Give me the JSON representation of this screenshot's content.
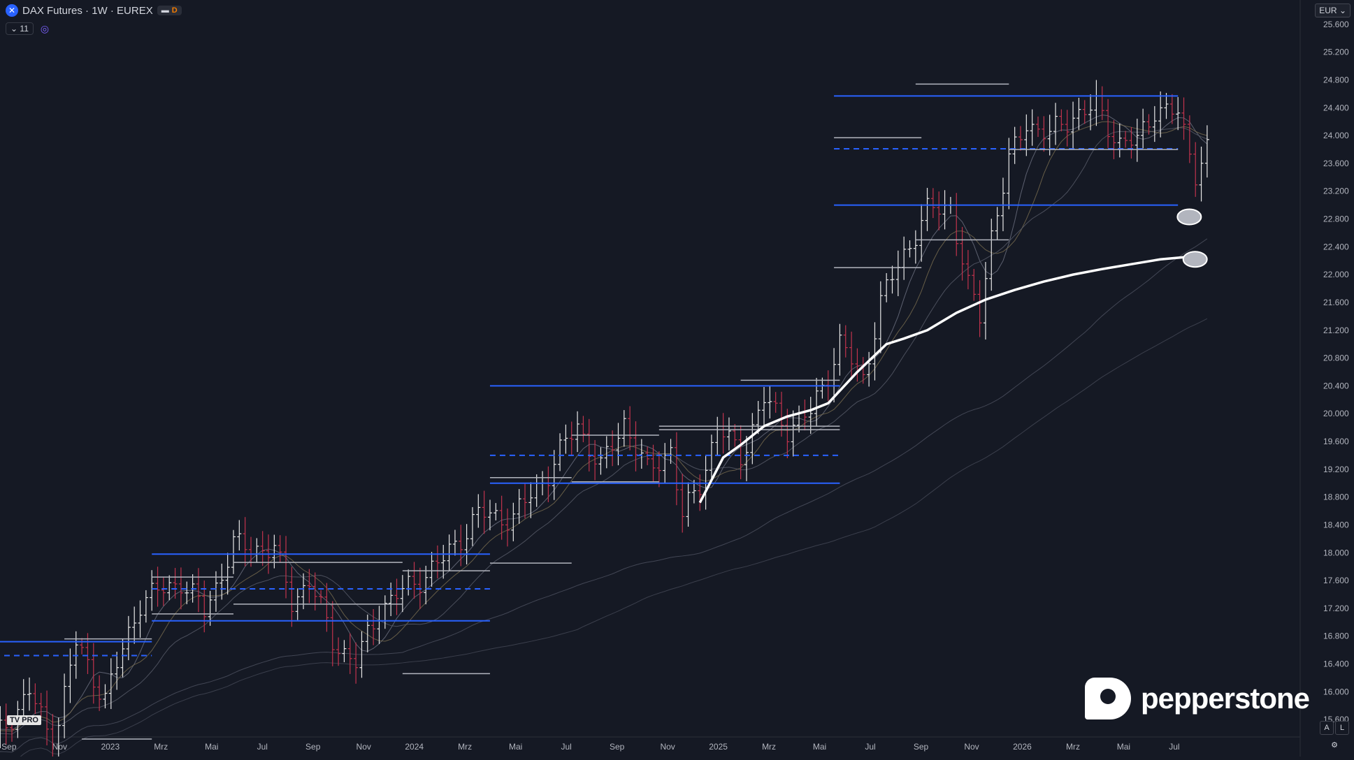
{
  "header": {
    "symbol_icon": "x-circle-icon",
    "title": "DAX Futures · 1W · EUREX",
    "badge_letter": "D",
    "indicator_count": "11",
    "currency": "EUR"
  },
  "controls": {
    "auto_label": "A",
    "log_label": "L",
    "settings_icon": "gear-icon"
  },
  "branding": {
    "logo_text": "pepperstone",
    "tv_badge": "TV PRO"
  },
  "colors": {
    "background": "#151924",
    "up_bar": "#e8e8e8",
    "down_bar": "#c2334d",
    "level_blue": "#2962ff",
    "level_white": "#b2b5be",
    "ma_highlight": "#ffffff"
  },
  "chart_data": {
    "type": "ohlc",
    "timeframe": "1W",
    "y_axis_ticks": [
      "15.600",
      "16.000",
      "16.400",
      "16.800",
      "17.200",
      "17.600",
      "18.000",
      "18.400",
      "18.800",
      "19.200",
      "19.600",
      "20.000",
      "20.400",
      "20.800",
      "21.200",
      "21.600",
      "22.000",
      "22.400",
      "22.800",
      "23.200",
      "23.600",
      "24.000",
      "24.400",
      "24.800",
      "25.200",
      "25.600"
    ],
    "ylim": [
      15350,
      25950
    ],
    "x_axis_ticks": [
      "Sep",
      "Nov",
      "2023",
      "Mrz",
      "Mai",
      "Jul",
      "Sep",
      "Nov",
      "2024",
      "Mrz",
      "Mai",
      "Jul",
      "Sep",
      "Nov",
      "2025",
      "Mrz",
      "Mai",
      "Jul",
      "Sep",
      "Nov",
      "2026",
      "Mrz",
      "Mai",
      "Jul"
    ],
    "price_path": [
      [
        0,
        15300
      ],
      [
        6,
        16000
      ],
      [
        10,
        15250
      ],
      [
        14,
        16700
      ],
      [
        19,
        15900
      ],
      [
        25,
        17300
      ],
      [
        32,
        17600
      ],
      [
        36,
        17150
      ],
      [
        41,
        18100
      ],
      [
        48,
        18050
      ],
      [
        51,
        17300
      ],
      [
        54,
        17600
      ],
      [
        58,
        16750
      ],
      [
        62,
        16400
      ],
      [
        66,
        17200
      ],
      [
        71,
        17500
      ],
      [
        77,
        17900
      ],
      [
        83,
        18550
      ],
      [
        89,
        18500
      ],
      [
        95,
        19150
      ],
      [
        100,
        19850
      ],
      [
        104,
        19200
      ],
      [
        108,
        19900
      ],
      [
        112,
        19150
      ],
      [
        116,
        19500
      ],
      [
        118,
        18500
      ],
      [
        121,
        19000
      ],
      [
        124,
        19800
      ],
      [
        128,
        19400
      ],
      [
        132,
        20200
      ],
      [
        136,
        19800
      ],
      [
        140,
        20000
      ],
      [
        145,
        21000
      ],
      [
        149,
        20500
      ],
      [
        152,
        21600
      ],
      [
        156,
        22300
      ],
      [
        160,
        22900
      ],
      [
        164,
        23000
      ],
      [
        167,
        21800
      ],
      [
        169,
        21400
      ],
      [
        171,
        22600
      ],
      [
        174,
        23600
      ],
      [
        177,
        24200
      ],
      [
        181,
        24000
      ],
      [
        185,
        24300
      ],
      [
        189,
        24400
      ],
      [
        193,
        23900
      ],
      [
        196,
        23900
      ],
      [
        199,
        24400
      ],
      [
        203,
        24300
      ],
      [
        206,
        23500
      ],
      [
        208,
        23800
      ]
    ],
    "levels": [
      {
        "w0": 0,
        "w1": 27,
        "price": 16720,
        "style": "solid",
        "color": "blue"
      },
      {
        "w0": 0,
        "w1": 27,
        "price": 16520,
        "style": "dashed",
        "color": "blue"
      },
      {
        "w0": 27,
        "w1": 85,
        "price": 17980,
        "style": "solid",
        "color": "blue"
      },
      {
        "w0": 27,
        "w1": 85,
        "price": 17480,
        "style": "dashed",
        "color": "blue"
      },
      {
        "w0": 27,
        "w1": 85,
        "price": 17020,
        "style": "solid",
        "color": "blue"
      },
      {
        "w0": 85,
        "w1": 145,
        "price": 20400,
        "style": "solid",
        "color": "blue"
      },
      {
        "w0": 85,
        "w1": 145,
        "price": 19400,
        "style": "dashed",
        "color": "blue"
      },
      {
        "w0": 85,
        "w1": 145,
        "price": 19000,
        "style": "solid",
        "color": "blue"
      },
      {
        "w0": 144,
        "w1": 203,
        "price": 24570,
        "style": "solid",
        "color": "blue"
      },
      {
        "w0": 144,
        "w1": 203,
        "price": 23810,
        "style": "dashed",
        "color": "blue"
      },
      {
        "w0": 144,
        "w1": 203,
        "price": 23000,
        "style": "solid",
        "color": "blue"
      },
      {
        "w0": 12,
        "w1": 27,
        "price": 16760,
        "style": "solid",
        "color": "white"
      },
      {
        "w0": 15,
        "w1": 27,
        "price": 15320,
        "style": "solid",
        "color": "white"
      },
      {
        "w0": 27,
        "w1": 41,
        "price": 17120,
        "style": "solid",
        "color": "white"
      },
      {
        "w0": 27,
        "w1": 41,
        "price": 17650,
        "style": "solid",
        "color": "white"
      },
      {
        "w0": 41,
        "w1": 70,
        "price": 17860,
        "style": "solid",
        "color": "white"
      },
      {
        "w0": 41,
        "w1": 70,
        "price": 17260,
        "style": "solid",
        "color": "white"
      },
      {
        "w0": 70,
        "w1": 85,
        "price": 17740,
        "style": "solid",
        "color": "white"
      },
      {
        "w0": 70,
        "w1": 85,
        "price": 16260,
        "style": "solid",
        "color": "white"
      },
      {
        "w0": 85,
        "w1": 99,
        "price": 17850,
        "style": "solid",
        "color": "white"
      },
      {
        "w0": 85,
        "w1": 99,
        "price": 19080,
        "style": "solid",
        "color": "white"
      },
      {
        "w0": 99,
        "w1": 114,
        "price": 19690,
        "style": "solid",
        "color": "white"
      },
      {
        "w0": 99,
        "w1": 114,
        "price": 19020,
        "style": "solid",
        "color": "white"
      },
      {
        "w0": 114,
        "w1": 145,
        "price": 19820,
        "style": "solid",
        "color": "white"
      },
      {
        "w0": 114,
        "w1": 145,
        "price": 19770,
        "style": "solid",
        "color": "white"
      },
      {
        "w0": 128,
        "w1": 145,
        "price": 20480,
        "style": "solid",
        "color": "white"
      },
      {
        "w0": 144,
        "w1": 159,
        "price": 23970,
        "style": "solid",
        "color": "white"
      },
      {
        "w0": 144,
        "w1": 159,
        "price": 22100,
        "style": "solid",
        "color": "white"
      },
      {
        "w0": 158,
        "w1": 174,
        "price": 22500,
        "style": "solid",
        "color": "white"
      },
      {
        "w0": 158,
        "w1": 174,
        "price": 24740,
        "style": "solid",
        "color": "white"
      },
      {
        "w0": 174,
        "w1": 189,
        "price": 23800,
        "style": "solid",
        "color": "white"
      },
      {
        "w0": 188,
        "w1": 203,
        "price": 23800,
        "style": "solid",
        "color": "white"
      }
    ],
    "highlight_ma": [
      [
        121,
        18720
      ],
      [
        125,
        19370
      ],
      [
        128,
        19550
      ],
      [
        132,
        19820
      ],
      [
        136,
        19960
      ],
      [
        140,
        20050
      ],
      [
        143,
        20150
      ],
      [
        148,
        20600
      ],
      [
        153,
        21000
      ],
      [
        156,
        21080
      ],
      [
        160,
        21200
      ],
      [
        165,
        21450
      ],
      [
        170,
        21640
      ],
      [
        175,
        21780
      ],
      [
        180,
        21900
      ],
      [
        185,
        22000
      ],
      [
        190,
        22080
      ],
      [
        195,
        22150
      ],
      [
        200,
        22220
      ],
      [
        204,
        22250
      ]
    ],
    "ma_set": [
      {
        "lag": 3,
        "alpha": 0.35,
        "color": "#6f7383"
      },
      {
        "lag": 5,
        "alpha": 0.3,
        "color": "#7a6e50"
      },
      {
        "lag": 9,
        "alpha": 0.25,
        "color": "#5a5e6c"
      },
      {
        "lag": 35,
        "alpha": 0.25,
        "color": "#4d5160"
      },
      {
        "lag": 50,
        "alpha": 0.22,
        "color": "#454956"
      }
    ],
    "markers": [
      {
        "w": 203.5,
        "price": 22830
      },
      {
        "w": 204.5,
        "price": 22220
      }
    ]
  }
}
